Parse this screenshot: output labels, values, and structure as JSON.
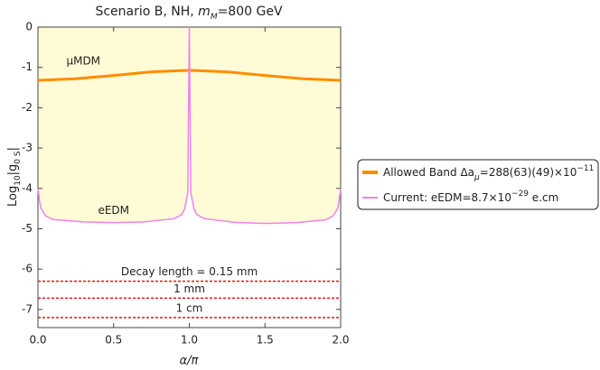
{
  "chart_data": {
    "type": "line",
    "title": [
      "Scenario B, NH, ",
      "m",
      "M",
      "=800 GeV"
    ],
    "x_label": "α/π",
    "y_label": [
      "Log",
      "10",
      "|g",
      "0 S",
      "|"
    ],
    "xlim": [
      0,
      2
    ],
    "ylim": [
      -7.45,
      0
    ],
    "xticks": [
      {
        "value": 0,
        "label": "0.0"
      },
      {
        "value": 0.5,
        "label": "0.5"
      },
      {
        "value": 1,
        "label": "1.0"
      },
      {
        "value": 1.5,
        "label": "1.5"
      },
      {
        "value": 2,
        "label": "2.0"
      }
    ],
    "yticks": [
      0,
      -1,
      -2,
      -3,
      -4,
      -5,
      -6,
      -7
    ],
    "series": [
      {
        "name": [
          "Allowed Band Δa",
          "μ",
          "=288(63)(49)×10",
          "−11"
        ],
        "annotation": "μMDM",
        "color": "#ff8c00",
        "x": [
          0,
          0.25,
          0.5,
          0.75,
          1,
          1.25,
          1.5,
          1.75,
          2
        ],
        "values": [
          -1.32,
          -1.28,
          -1.2,
          -1.11,
          -1.07,
          -1.11,
          -1.2,
          -1.28,
          -1.32
        ]
      },
      {
        "name": [
          "Current: eEDM=8.7×10",
          "−29",
          " e.cm"
        ],
        "annotation": "eEDM",
        "color": "#ee82ee",
        "fill": "#fffbd6",
        "x": [
          0,
          0.01,
          0.02,
          0.05,
          0.1,
          0.3,
          0.5,
          0.7,
          0.9,
          0.95,
          0.97,
          0.99,
          1,
          1.01,
          1.03,
          1.05,
          1.1,
          1.3,
          1.5,
          1.7,
          1.9,
          1.95,
          1.98,
          1.99,
          2
        ],
        "values": [
          -4.0,
          -4.3,
          -4.5,
          -4.68,
          -4.77,
          -4.83,
          -4.85,
          -4.83,
          -4.75,
          -4.65,
          -4.5,
          -4.1,
          0,
          -4.1,
          -4.5,
          -4.65,
          -4.75,
          -4.84,
          -4.87,
          -4.85,
          -4.78,
          -4.68,
          -4.5,
          -4.3,
          -4.0
        ]
      }
    ],
    "reference_lines": [
      {
        "value": -6.3,
        "label": "Decay length = 0.15 mm"
      },
      {
        "value": -6.72,
        "label": "1 mm"
      },
      {
        "value": -7.2,
        "label": "1 cm"
      }
    ],
    "reference_color": "#e8141e"
  }
}
